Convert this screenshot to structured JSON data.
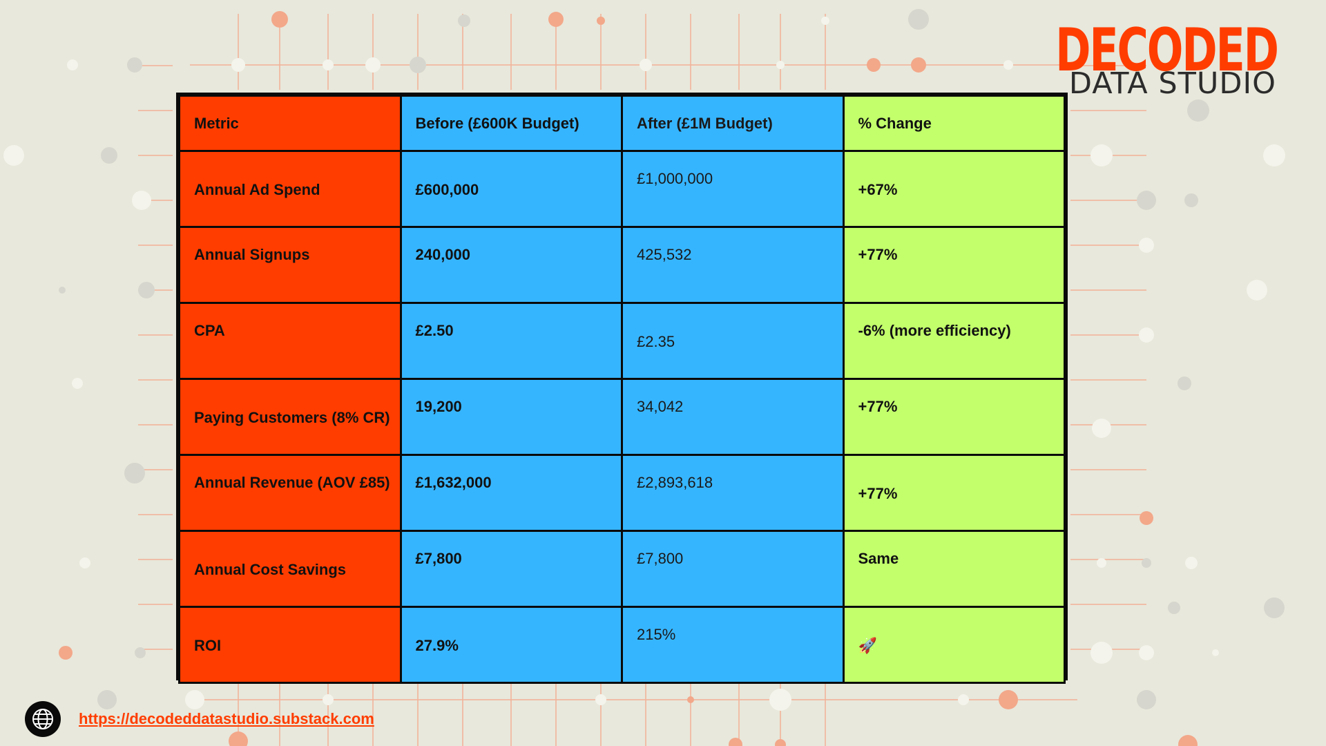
{
  "brand": {
    "title": "DECODED",
    "subtitle": "DATA STUDIO"
  },
  "table": {
    "headers": [
      "Metric",
      "Before (£600K Budget)",
      "After (£1M Budget)",
      "% Change"
    ],
    "rows": [
      [
        "Annual Ad Spend",
        "£600,000",
        "£1,000,000",
        "+67%"
      ],
      [
        "Annual Signups",
        "240,000",
        "425,532",
        "+77%"
      ],
      [
        "CPA",
        "£2.50",
        "£2.35",
        "-6% (more efficiency)"
      ],
      [
        "Paying Customers (8% CR)",
        "19,200",
        "34,042",
        "+77%"
      ],
      [
        "Annual Revenue (AOV £85)",
        "£1,632,000",
        "£2,893,618",
        "+77%"
      ],
      [
        "Annual Cost Savings",
        "£7,800",
        "£7,800",
        "Same"
      ],
      [
        "ROI",
        "27.9%",
        "215%",
        "🚀"
      ]
    ]
  },
  "footer": {
    "icon": "globe-icon",
    "link_text": "https://decodeddatastudio.substack.com"
  },
  "colors": {
    "metric_column": "#ff3d00",
    "before_after_columns": "#36b5ff",
    "change_column": "#c2ff6b",
    "background": "#e8e8dc",
    "accent": "#ff3d00"
  }
}
